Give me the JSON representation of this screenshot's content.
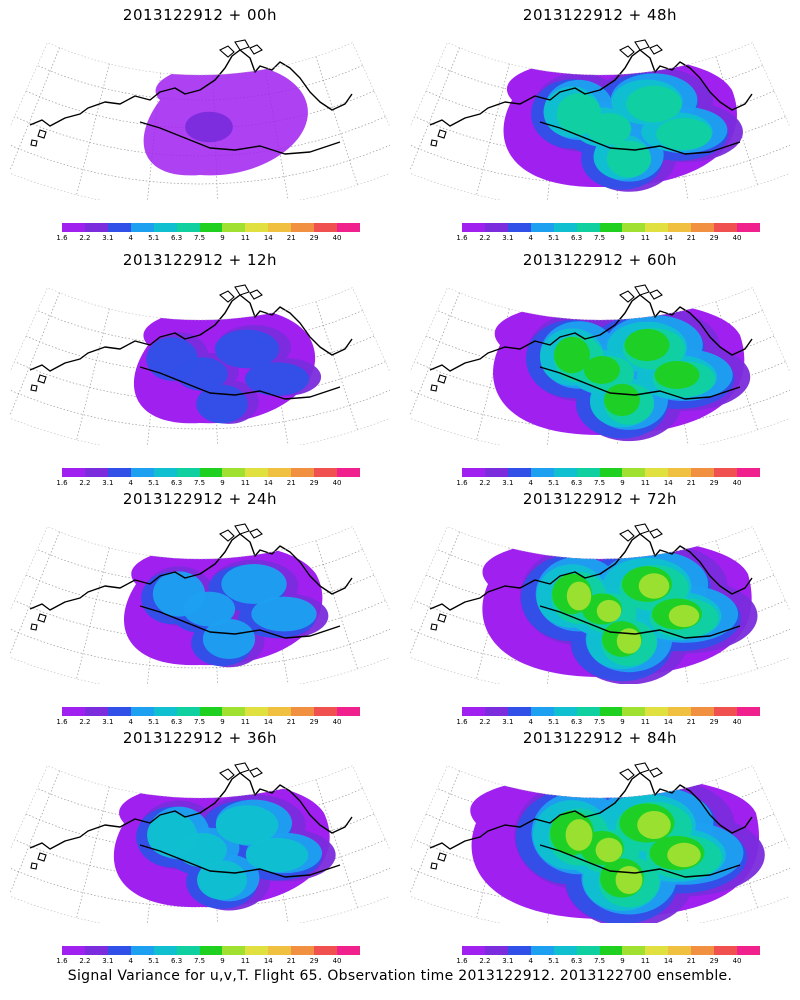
{
  "footer": "Signal Variance for u,v,T. Flight 65. Observation time 2013122912. 2013122700 ensemble.",
  "colorbar": {
    "labels": [
      "1.6",
      "2.2",
      "3.1",
      "4",
      "5.1",
      "6.3",
      "7.5",
      "9",
      "11",
      "14",
      "21",
      "29",
      "40"
    ],
    "colors": [
      "#a020f0",
      "#7b2cdc",
      "#3050e8",
      "#1ea0f0",
      "#10c0d0",
      "#10d0a0",
      "#20d020",
      "#a0e030",
      "#e0e040",
      "#f0c040",
      "#f09040",
      "#f05050",
      "#f0208c"
    ]
  },
  "panels": [
    {
      "title": "2013122912 + 00h",
      "level": 0
    },
    {
      "title": "2013122912 + 48h",
      "level": 4
    },
    {
      "title": "2013122912 + 12h",
      "level": 1
    },
    {
      "title": "2013122912 + 60h",
      "level": 5
    },
    {
      "title": "2013122912 + 24h",
      "level": 2
    },
    {
      "title": "2013122912 + 72h",
      "level": 6
    },
    {
      "title": "2013122912 + 36h",
      "level": 3
    },
    {
      "title": "2013122912 + 84h",
      "level": 7
    }
  ]
}
